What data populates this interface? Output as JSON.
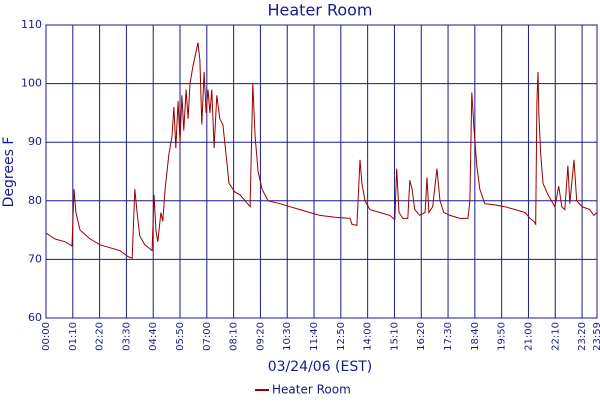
{
  "chart_data": {
    "type": "line",
    "title": "Heater Room",
    "x_label": "03/24/06 (EST)",
    "y_label": "Degrees F",
    "xlim": [
      0,
      1439
    ],
    "ylim": [
      60,
      110
    ],
    "yticks": [
      60,
      70,
      80,
      90,
      100,
      110
    ],
    "grid": true,
    "legend": "bottom",
    "xticks": [
      {
        "value": 0,
        "label": "00:00"
      },
      {
        "value": 70,
        "label": "01:10"
      },
      {
        "value": 140,
        "label": "02:20"
      },
      {
        "value": 210,
        "label": "03:30"
      },
      {
        "value": 280,
        "label": "04:40"
      },
      {
        "value": 350,
        "label": "05:50"
      },
      {
        "value": 420,
        "label": "07:00"
      },
      {
        "value": 490,
        "label": "08:10"
      },
      {
        "value": 560,
        "label": "09:20"
      },
      {
        "value": 630,
        "label": "10:30"
      },
      {
        "value": 700,
        "label": "11:40"
      },
      {
        "value": 770,
        "label": "12:50"
      },
      {
        "value": 840,
        "label": "14:00"
      },
      {
        "value": 910,
        "label": "15:10"
      },
      {
        "value": 980,
        "label": "16:20"
      },
      {
        "value": 1050,
        "label": "17:30"
      },
      {
        "value": 1120,
        "label": "18:40"
      },
      {
        "value": 1190,
        "label": "19:50"
      },
      {
        "value": 1260,
        "label": "21:00"
      },
      {
        "value": 1330,
        "label": "22:10"
      },
      {
        "value": 1400,
        "label": "23:20"
      },
      {
        "value": 1439,
        "label": "23:59"
      }
    ],
    "x": [
      0,
      23,
      50,
      63,
      68,
      73,
      78,
      89,
      115,
      141,
      167,
      193,
      214,
      225,
      232,
      238,
      245,
      258,
      277,
      282,
      287,
      292,
      300,
      305,
      311,
      321,
      329,
      334,
      339,
      345,
      350,
      355,
      360,
      366,
      371,
      376,
      384,
      397,
      402,
      407,
      413,
      418,
      423,
      428,
      433,
      439,
      446,
      454,
      462,
      470,
      478,
      493,
      507,
      520,
      533,
      540,
      546,
      554,
      564,
      580,
      611,
      637,
      663,
      689,
      715,
      755,
      794,
      799,
      812,
      820,
      825,
      833,
      846,
      872,
      898,
      911,
      916,
      922,
      932,
      945,
      950,
      956,
      963,
      976,
      990,
      995,
      1000,
      1010,
      1021,
      1029,
      1039,
      1055,
      1081,
      1102,
      1107,
      1112,
      1118,
      1125,
      1133,
      1146,
      1172,
      1198,
      1225,
      1251,
      1264,
      1274,
      1279,
      1282,
      1285,
      1287,
      1292,
      1298,
      1311,
      1329,
      1339,
      1347,
      1355,
      1363,
      1368,
      1379,
      1386,
      1400,
      1420,
      1431,
      1439
    ],
    "series": [
      {
        "name": "Heater Room",
        "color": "#990000",
        "values": [
          74.5,
          73.5,
          73,
          72.5,
          72.3,
          82,
          78,
          75,
          73.5,
          72.5,
          72,
          71.5,
          70.5,
          70.2,
          82,
          78,
          74,
          72.5,
          71.5,
          81,
          75,
          73,
          78,
          76.5,
          82,
          88,
          91,
          96,
          89,
          97,
          90,
          98,
          92,
          99,
          94,
          100,
          103,
          107,
          104,
          93,
          102,
          95,
          99,
          95,
          99,
          89,
          98,
          94,
          93,
          88,
          83,
          81.5,
          81,
          80,
          79,
          100,
          91,
          85,
          82,
          80,
          79.5,
          79,
          78.5,
          78,
          77.5,
          77.2,
          77,
          76,
          75.8,
          87,
          83,
          80,
          78.5,
          78,
          77.5,
          76.8,
          85.5,
          78,
          77,
          77,
          83.5,
          82,
          78.5,
          77.5,
          78,
          84,
          78,
          79,
          85.5,
          80,
          78,
          77.5,
          77,
          77,
          80,
          98.5,
          92,
          86,
          82,
          79.5,
          79.3,
          79,
          78.5,
          78,
          77,
          76.5,
          76,
          97,
          102,
          95,
          88,
          83,
          81,
          79,
          82.5,
          79,
          78.5,
          86,
          79.5,
          87,
          80,
          79,
          78.5,
          77.5,
          78
        ]
      }
    ]
  }
}
